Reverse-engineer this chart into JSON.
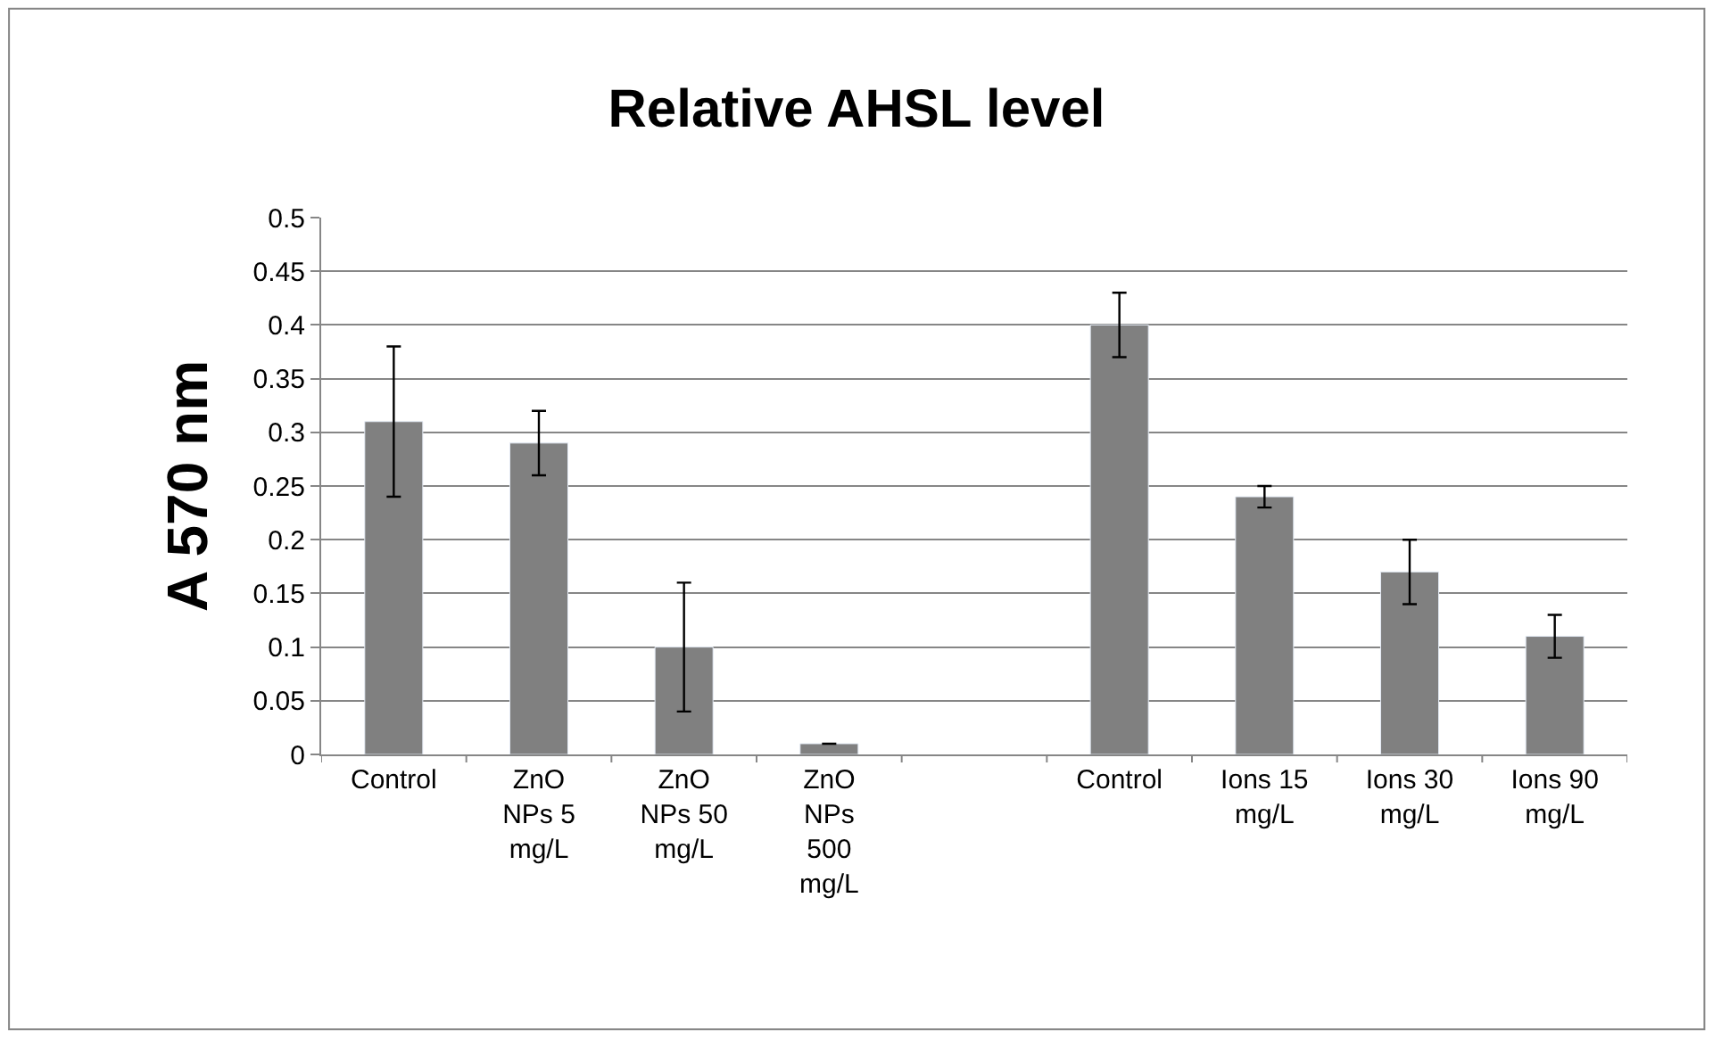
{
  "chart_data": {
    "type": "bar",
    "title": "Relative AHSL level",
    "ylabel": "A 570 nm",
    "categories": [
      "Control",
      "ZnO\nNPs 5\nmg/L",
      "ZnO\nNPs 50\nmg/L",
      "ZnO\nNPs\n500\nmg/L",
      null,
      "Control",
      "Ions 15\nmg/L",
      "Ions 30\nmg/L",
      "Ions 90\nmg/L"
    ],
    "values": [
      0.31,
      0.29,
      0.1,
      0.01,
      null,
      0.4,
      0.24,
      0.17,
      0.11
    ],
    "errors": [
      0.07,
      0.03,
      0.06,
      0,
      null,
      0.03,
      0.01,
      0.03,
      0.02
    ],
    "color": "#808080",
    "ylim": [
      0,
      0.5
    ],
    "yticks": [
      0,
      0.05,
      0.1,
      0.15,
      0.2,
      0.25,
      0.3,
      0.35,
      0.4,
      0.45,
      0.5
    ],
    "grid": "y"
  }
}
